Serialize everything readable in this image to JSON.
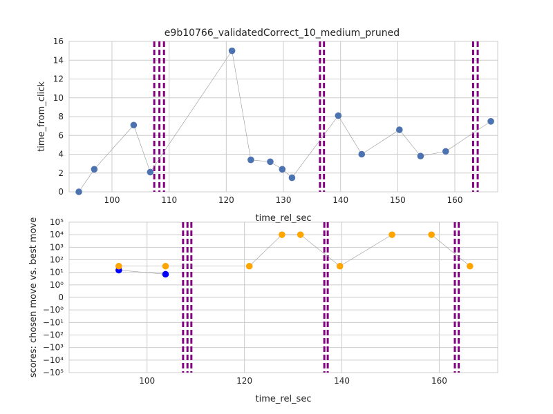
{
  "chart_data": [
    {
      "type": "scatter",
      "title": "e9b10766_validatedCorrect_10_medium_pruned",
      "xlabel": "time_rel_sec",
      "ylabel": "time_from_click",
      "xlim": [
        92.5,
        167.5
      ],
      "ylim": [
        0,
        16
      ],
      "xticks": [
        100,
        110,
        120,
        130,
        140,
        150,
        160
      ],
      "xtick_labels": [
        "100",
        "110",
        "120",
        "130",
        "140",
        "150",
        "160"
      ],
      "yticks": [
        0,
        2,
        4,
        6,
        8,
        10,
        12,
        14,
        16
      ],
      "ytick_labels": [
        "0",
        "2",
        "4",
        "6",
        "8",
        "10",
        "12",
        "14",
        "16"
      ],
      "grid": true,
      "series": [
        {
          "color": "#4c72b0",
          "connected": true,
          "x": [
            94.2,
            96.9,
            103.8,
            106.7,
            121.0,
            124.3,
            127.7,
            129.8,
            131.5,
            139.6,
            143.7,
            150.3,
            154.0,
            158.4,
            166.3
          ],
          "y": [
            0.0,
            2.4,
            7.1,
            2.1,
            15.0,
            3.4,
            3.2,
            2.4,
            1.5,
            8.1,
            4.0,
            6.6,
            3.8,
            4.3,
            7.5
          ]
        }
      ],
      "vlines": {
        "color": "#800080",
        "style": "dashed",
        "x": [
          107.4,
          108.3,
          109.1,
          136.4,
          137.1,
          163.2,
          164.0
        ]
      }
    },
    {
      "type": "scatter",
      "xlabel": "time_rel_sec",
      "ylabel": "scores: chosen move vs. best move",
      "xlim": [
        84,
        172
      ],
      "yscale": "symlog",
      "ylim": [
        -100000,
        100000
      ],
      "xticks": [
        100,
        120,
        140,
        160
      ],
      "xtick_labels": [
        "100",
        "120",
        "140",
        "160"
      ],
      "yticks": [
        100000,
        10000,
        1000,
        100,
        10,
        1,
        0,
        -1,
        -10,
        -100,
        -1000,
        -10000,
        -100000
      ],
      "ytick_labels": [
        "10⁵",
        "10⁴",
        "10³",
        "10²",
        "10¹",
        "10⁰",
        "0",
        "−10⁰",
        "−10¹",
        "−10²",
        "−10³",
        "−10⁴",
        "−10⁵"
      ],
      "grid": true,
      "series": [
        {
          "color": "#0000ff",
          "connected": true,
          "x": [
            94.2,
            103.8
          ],
          "y": [
            15,
            7
          ]
        },
        {
          "color": "#ffa500",
          "connected": true,
          "x": [
            94.2,
            103.8,
            121.0,
            127.7,
            131.5,
            139.6,
            150.3,
            158.4,
            166.3
          ],
          "y": [
            31,
            31,
            31,
            10000,
            10000,
            31,
            10000,
            10000,
            31
          ]
        }
      ],
      "vlines": {
        "color": "#800080",
        "style": "dashed",
        "x": [
          107.4,
          108.3,
          109.1,
          136.4,
          137.1,
          163.2,
          164.0
        ]
      }
    }
  ]
}
